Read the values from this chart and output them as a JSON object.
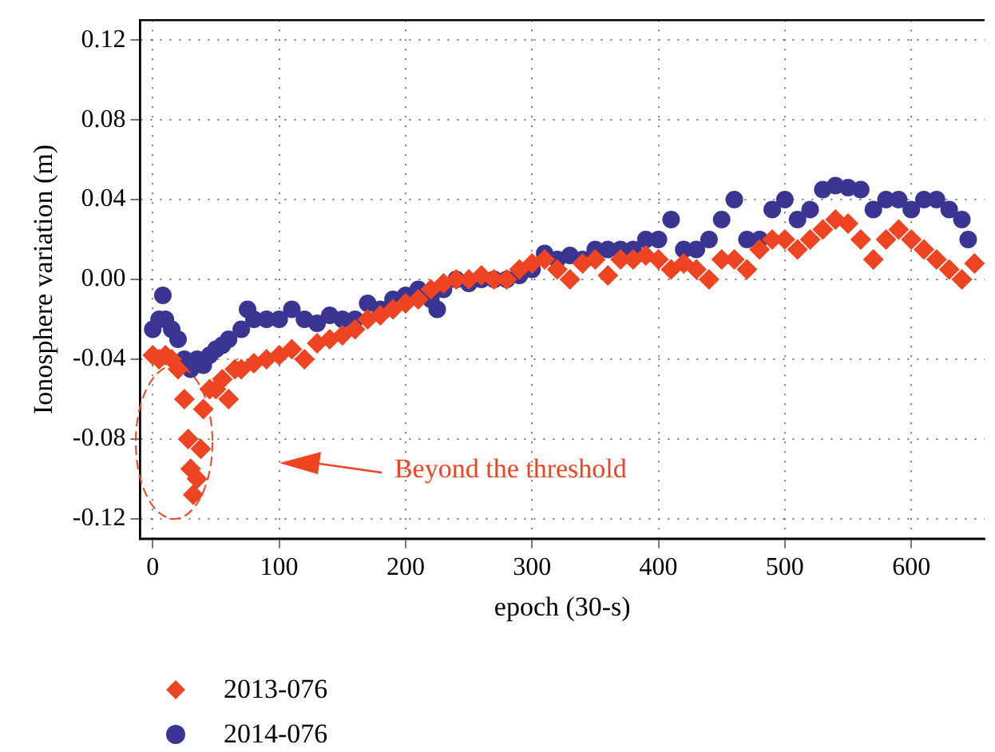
{
  "chart_data": {
    "type": "scatter",
    "xlabel": "epoch (30-s)",
    "ylabel": "Ionosphere variation (m)",
    "xlim": [
      -10,
      658
    ],
    "xticks": [
      0,
      100,
      200,
      300,
      400,
      500,
      600
    ],
    "ylim": [
      -0.13,
      0.13
    ],
    "yticks": [
      {
        "value": -0.12,
        "label": "-0.12"
      },
      {
        "value": -0.08,
        "label": "-0.08"
      },
      {
        "value": -0.04,
        "label": "-0.04"
      },
      {
        "value": 0,
        "label": "0.00"
      },
      {
        "value": 0.04,
        "label": "0.04"
      },
      {
        "value": 0.08,
        "label": "0.08"
      },
      {
        "value": 0.12,
        "label": "0.12"
      }
    ],
    "grid": true,
    "legend": "bottom left",
    "annotations": [
      "Beyond the threshold"
    ],
    "series": [
      {
        "name": "2013-076",
        "color": "#ee4422",
        "marker": "diamond",
        "x": [
          0,
          5,
          10,
          15,
          20,
          25,
          28,
          30,
          32,
          35,
          38,
          40,
          45,
          50,
          55,
          60,
          65,
          70,
          80,
          90,
          100,
          110,
          120,
          130,
          140,
          150,
          160,
          170,
          180,
          190,
          200,
          210,
          220,
          230,
          240,
          250,
          260,
          270,
          280,
          290,
          300,
          310,
          320,
          330,
          340,
          350,
          360,
          370,
          380,
          390,
          400,
          410,
          420,
          430,
          440,
          450,
          460,
          470,
          480,
          490,
          500,
          510,
          520,
          530,
          540,
          550,
          560,
          570,
          580,
          590,
          600,
          610,
          620,
          630,
          640,
          650
        ],
        "values": [
          -0.038,
          -0.04,
          -0.038,
          -0.04,
          -0.045,
          -0.06,
          -0.08,
          -0.095,
          -0.108,
          -0.1,
          -0.085,
          -0.065,
          -0.055,
          -0.055,
          -0.05,
          -0.06,
          -0.045,
          -0.045,
          -0.042,
          -0.04,
          -0.038,
          -0.035,
          -0.04,
          -0.032,
          -0.03,
          -0.028,
          -0.025,
          -0.02,
          -0.018,
          -0.015,
          -0.012,
          -0.01,
          -0.005,
          -0.002,
          0,
          0,
          0.002,
          0,
          0,
          0.005,
          0.008,
          0.01,
          0.005,
          0,
          0.008,
          0.01,
          0.002,
          0.01,
          0.01,
          0.012,
          0.01,
          0.005,
          0.008,
          0.005,
          0,
          0.01,
          0.01,
          0.005,
          0.015,
          0.02,
          0.02,
          0.015,
          0.02,
          0.025,
          0.03,
          0.028,
          0.02,
          0.01,
          0.02,
          0.025,
          0.02,
          0.015,
          0.01,
          0.005,
          0,
          0.008
        ]
      },
      {
        "name": "2014-076",
        "color": "#3a3592",
        "marker": "circle",
        "x": [
          0,
          5,
          8,
          10,
          15,
          20,
          25,
          30,
          35,
          40,
          45,
          50,
          55,
          60,
          70,
          75,
          80,
          90,
          100,
          110,
          120,
          130,
          140,
          150,
          160,
          170,
          180,
          190,
          200,
          210,
          220,
          225,
          230,
          240,
          250,
          260,
          270,
          280,
          290,
          300,
          310,
          320,
          330,
          340,
          350,
          360,
          370,
          380,
          390,
          400,
          410,
          420,
          430,
          440,
          450,
          460,
          470,
          480,
          490,
          500,
          510,
          520,
          530,
          540,
          550,
          560,
          570,
          580,
          590,
          600,
          610,
          620,
          630,
          640,
          645
        ],
        "values": [
          -0.025,
          -0.02,
          -0.008,
          -0.02,
          -0.025,
          -0.03,
          -0.04,
          -0.045,
          -0.04,
          -0.043,
          -0.038,
          -0.035,
          -0.033,
          -0.03,
          -0.025,
          -0.015,
          -0.02,
          -0.02,
          -0.02,
          -0.015,
          -0.02,
          -0.022,
          -0.018,
          -0.02,
          -0.02,
          -0.012,
          -0.015,
          -0.01,
          -0.008,
          -0.005,
          -0.01,
          -0.015,
          -0.005,
          0,
          -0.002,
          0,
          0,
          0,
          0.002,
          0.005,
          0.013,
          0.01,
          0.012,
          0.01,
          0.015,
          0.015,
          0.015,
          0.015,
          0.02,
          0.02,
          0.03,
          0.015,
          0.015,
          0.02,
          0.03,
          0.04,
          0.02,
          0.02,
          0.035,
          0.04,
          0.03,
          0.035,
          0.045,
          0.047,
          0.046,
          0.045,
          0.035,
          0.04,
          0.04,
          0.035,
          0.04,
          0.04,
          0.035,
          0.03,
          0.02
        ]
      }
    ]
  }
}
